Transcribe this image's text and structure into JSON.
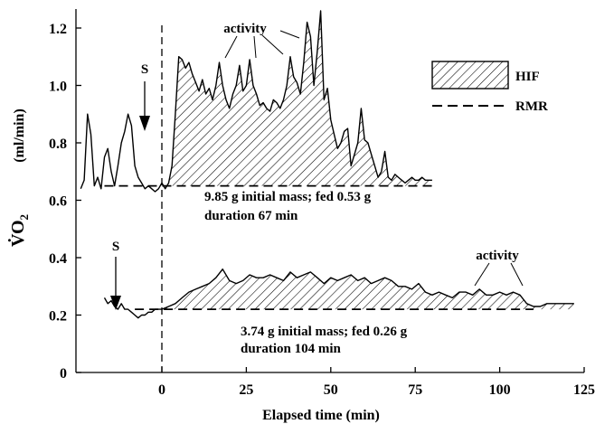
{
  "chart_data": {
    "type": "line",
    "xlabel": "Elapsed time  (min)",
    "ylabel_main": "V̇O",
    "ylabel_sub": "2",
    "ylabel_unit": "(ml/min)",
    "xlim": [
      -25,
      125
    ],
    "ylim": [
      0,
      1.25
    ],
    "x_ticks": [
      0,
      25,
      50,
      75,
      100,
      125
    ],
    "x_tick_labels": [
      "0",
      "25",
      "50",
      "75",
      "100",
      "125"
    ],
    "y_ticks": [
      0,
      0.2,
      0.4,
      0.6,
      0.8,
      1.0,
      1.2
    ],
    "y_tick_labels": [
      "0",
      "0.2",
      "0.4",
      "0.6",
      "0.8",
      "1.0",
      "1.2"
    ],
    "feeding_marker_x": 0,
    "legend": {
      "placement": "top-right",
      "entries": [
        "HIF",
        "RMR"
      ]
    },
    "series": [
      {
        "name": "9.85 g initial mass",
        "rmr": 0.65,
        "x": [
          -24,
          -23,
          -22,
          -21,
          -20,
          -19,
          -18,
          -17,
          -16,
          -15,
          -14,
          -13,
          -12,
          -11,
          -10,
          -9,
          -8,
          -7,
          -6,
          -5,
          -4,
          -3,
          -2,
          -1,
          0,
          1,
          2,
          3,
          4,
          5,
          6,
          7,
          8,
          9,
          10,
          11,
          12,
          13,
          14,
          15,
          16,
          17,
          18,
          19,
          20,
          21,
          22,
          23,
          24,
          25,
          26,
          27,
          28,
          29,
          30,
          31,
          32,
          33,
          34,
          35,
          36,
          37,
          38,
          39,
          40,
          41,
          42,
          43,
          44,
          45,
          46,
          47,
          48,
          49,
          50,
          51,
          52,
          53,
          54,
          55,
          56,
          57,
          58,
          59,
          60,
          61,
          62,
          63,
          64,
          65,
          66,
          67,
          68,
          69,
          70,
          71,
          72,
          73,
          74,
          75,
          76,
          77,
          78,
          79,
          80
        ],
        "y": [
          0.64,
          0.67,
          0.9,
          0.83,
          0.65,
          0.68,
          0.64,
          0.75,
          0.78,
          0.7,
          0.65,
          0.72,
          0.8,
          0.84,
          0.9,
          0.86,
          0.72,
          0.68,
          0.66,
          0.64,
          0.65,
          0.64,
          0.63,
          0.64,
          0.66,
          0.64,
          0.66,
          0.72,
          0.9,
          1.1,
          1.09,
          1.06,
          1.08,
          1.04,
          1.01,
          0.98,
          1.02,
          0.97,
          0.99,
          0.95,
          1.0,
          1.08,
          1.0,
          0.95,
          0.92,
          0.97,
          1.0,
          1.07,
          0.98,
          1.0,
          1.09,
          1.0,
          0.97,
          0.93,
          0.94,
          0.92,
          0.91,
          0.95,
          0.94,
          0.92,
          0.95,
          1.0,
          1.1,
          1.03,
          1.01,
          0.97,
          1.08,
          1.22,
          1.17,
          1.0,
          1.12,
          1.26,
          0.95,
          0.99,
          0.88,
          0.83,
          0.78,
          0.8,
          0.84,
          0.85,
          0.72,
          0.76,
          0.8,
          0.92,
          0.81,
          0.8,
          0.76,
          0.72,
          0.68,
          0.7,
          0.77,
          0.68,
          0.67,
          0.69,
          0.68,
          0.67,
          0.66,
          0.67,
          0.68,
          0.67,
          0.67,
          0.68,
          0.67,
          0.67,
          0.67
        ]
      },
      {
        "name": "3.74 g initial mass",
        "rmr": 0.22,
        "x": [
          -17,
          -16,
          -15,
          -14,
          -13,
          -12,
          -11,
          -10,
          -9,
          -8,
          -7,
          -6,
          -5,
          -4,
          -3,
          -2,
          -1,
          0,
          2,
          4,
          6,
          8,
          10,
          12,
          14,
          16,
          18,
          20,
          22,
          24,
          26,
          28,
          30,
          32,
          34,
          36,
          38,
          40,
          42,
          44,
          46,
          48,
          50,
          52,
          54,
          56,
          58,
          60,
          62,
          64,
          66,
          68,
          70,
          72,
          74,
          76,
          78,
          80,
          82,
          84,
          86,
          88,
          90,
          92,
          94,
          96,
          98,
          100,
          102,
          104,
          106,
          108,
          110,
          112,
          114,
          116,
          118,
          120,
          122
        ],
        "y": [
          0.26,
          0.24,
          0.25,
          0.23,
          0.22,
          0.24,
          0.22,
          0.22,
          0.21,
          0.2,
          0.19,
          0.2,
          0.2,
          0.21,
          0.21,
          0.22,
          0.22,
          0.22,
          0.23,
          0.24,
          0.26,
          0.28,
          0.29,
          0.3,
          0.31,
          0.33,
          0.36,
          0.32,
          0.31,
          0.32,
          0.34,
          0.33,
          0.33,
          0.34,
          0.33,
          0.32,
          0.35,
          0.33,
          0.34,
          0.35,
          0.33,
          0.31,
          0.33,
          0.32,
          0.33,
          0.34,
          0.32,
          0.33,
          0.31,
          0.32,
          0.33,
          0.32,
          0.3,
          0.3,
          0.29,
          0.31,
          0.28,
          0.27,
          0.28,
          0.27,
          0.26,
          0.28,
          0.28,
          0.27,
          0.29,
          0.27,
          0.27,
          0.28,
          0.27,
          0.28,
          0.27,
          0.24,
          0.23,
          0.23,
          0.24,
          0.24,
          0.24,
          0.24,
          0.24
        ]
      }
    ]
  },
  "annotations": {
    "s_top": "S",
    "s_bottom": "S",
    "activity_top": "activity",
    "activity_bottom": "activity",
    "upper_line1": "9.85 g initial mass; fed 0.53 g",
    "upper_line2": "duration 67 min",
    "lower_line1": "3.74 g initial mass; fed 0.26 g",
    "lower_line2": "duration 104 min"
  },
  "legend_labels": {
    "hif": "HIF",
    "rmr": "RMR"
  }
}
